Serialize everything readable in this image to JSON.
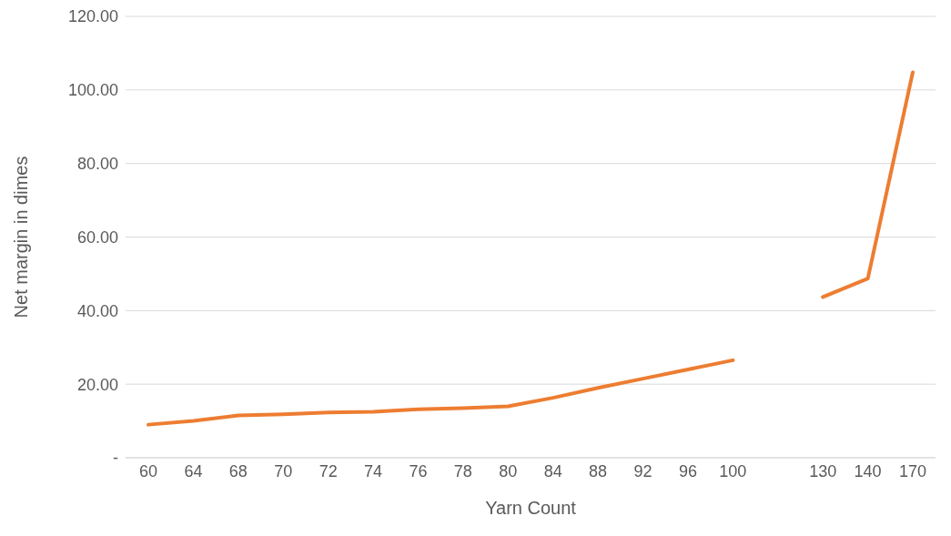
{
  "chart_data": {
    "type": "line",
    "xlabel": "Yarn Count",
    "ylabel": "Net margin in dimes",
    "categories": [
      "60",
      "64",
      "68",
      "70",
      "72",
      "74",
      "76",
      "78",
      "80",
      "84",
      "88",
      "92",
      "96",
      "100",
      null,
      "130",
      "140",
      "170"
    ],
    "series": [
      {
        "color": "#ed7d31",
        "values": [
          9.0,
          10.0,
          11.5,
          11.8,
          12.3,
          12.5,
          13.2,
          13.5,
          14.0,
          16.3,
          19.0,
          21.5,
          24.0,
          26.5,
          null,
          43.7,
          48.7,
          104.8
        ]
      }
    ],
    "ylim": [
      0,
      120
    ],
    "yticks": [
      {
        "value": 0,
        "label": "-"
      },
      {
        "value": 20,
        "label": "20.00"
      },
      {
        "value": 40,
        "label": "40.00"
      },
      {
        "value": 60,
        "label": "60.00"
      },
      {
        "value": 80,
        "label": "80.00"
      },
      {
        "value": 100,
        "label": "100.00"
      },
      {
        "value": 120,
        "label": "120.00"
      }
    ],
    "grid": "y",
    "legend": false,
    "marker": "none",
    "line_style": "solid"
  }
}
